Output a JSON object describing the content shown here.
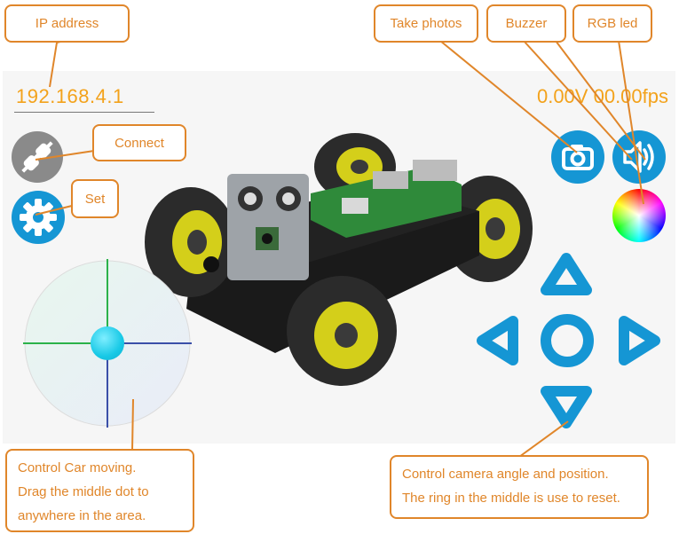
{
  "header": {
    "ip_address": "192.168.4.1",
    "voltage": "0.00V",
    "fps": "00.00fps"
  },
  "callouts": {
    "ip_address": "IP address",
    "connect": "Connect",
    "set": "Set",
    "take_photos": "Take photos",
    "buzzer": "Buzzer",
    "rgb_led": "RGB led",
    "car_moving": [
      "Control Car moving.",
      "Drag the middle dot to",
      "anywhere in the area."
    ],
    "camera_control": [
      "Control camera angle and position.",
      "The ring in the middle is use to reset."
    ]
  },
  "icons": {
    "connect": "link-icon",
    "settings": "gear-icon",
    "camera": "camera-icon",
    "buzzer": "speaker-icon",
    "rgb": "color-wheel-icon",
    "up": "triangle-up-icon",
    "down": "triangle-down-icon",
    "left": "triangle-left-icon",
    "right": "triangle-right-icon",
    "reset": "ring-icon"
  },
  "colors": {
    "accent_blue": "#1596d4",
    "orange": "#e0862a",
    "text_orange": "#f3a21b",
    "connect_gray": "#8a8a8a",
    "joystick_dot": "#18c9e6"
  }
}
